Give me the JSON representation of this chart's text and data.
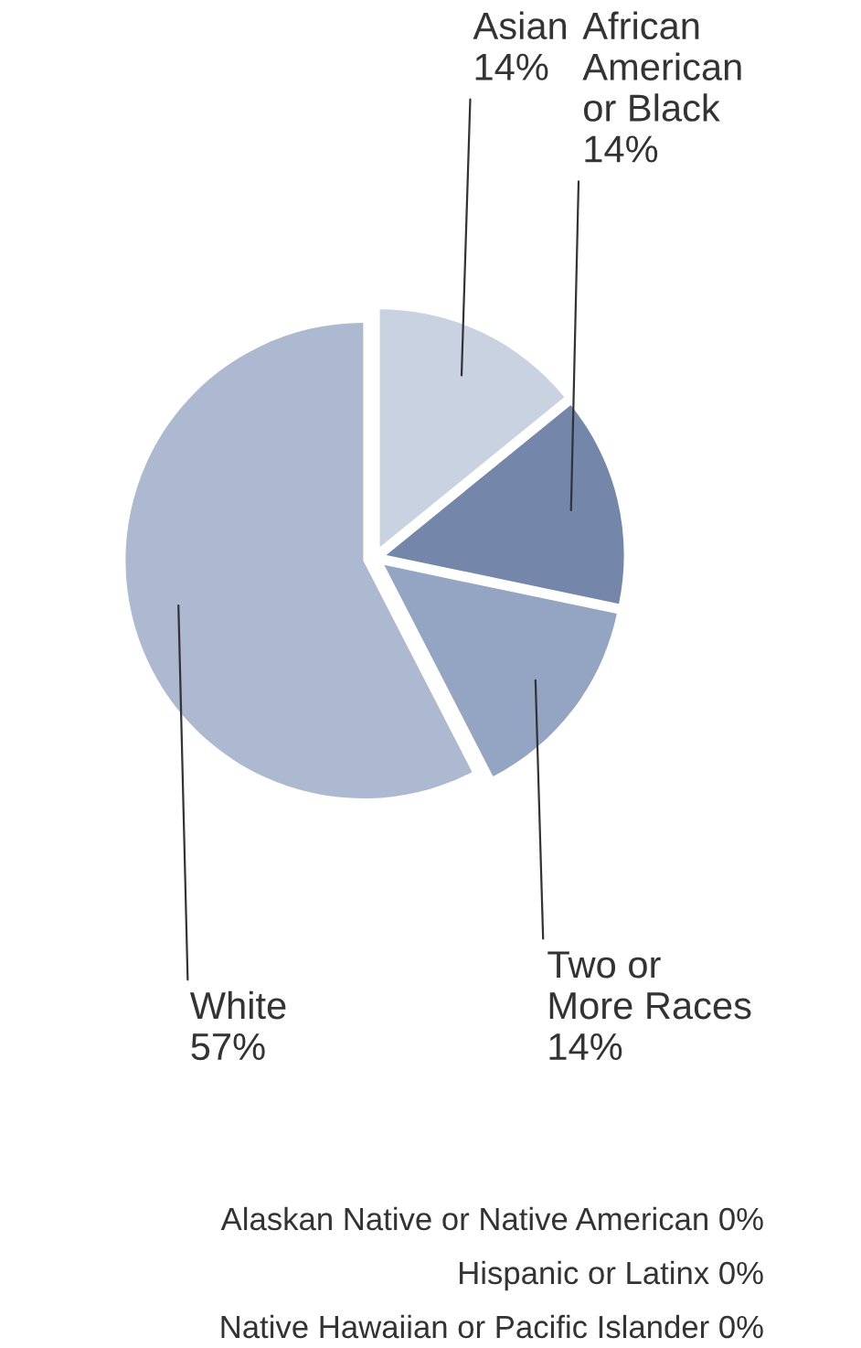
{
  "chart_data": {
    "type": "pie",
    "categories": [
      "Asian",
      "African\nAmerican\nor Black",
      "Two or\nMore Races",
      "White",
      "Alaskan Native or Native American",
      "Hispanic or Latinx",
      "Native Hawaiian or Pacific Islander"
    ],
    "values": [
      14,
      14,
      14,
      57,
      0,
      0,
      0
    ],
    "value_labels": [
      "14%",
      "14%",
      "14%",
      "57%",
      "0%",
      "0%",
      "0%"
    ],
    "colors": [
      "#c9d2e1",
      "#7487ab",
      "#94a4c3",
      "#adb9d1",
      "#adb9d1",
      "#adb9d1",
      "#adb9d1"
    ],
    "legend": false
  }
}
